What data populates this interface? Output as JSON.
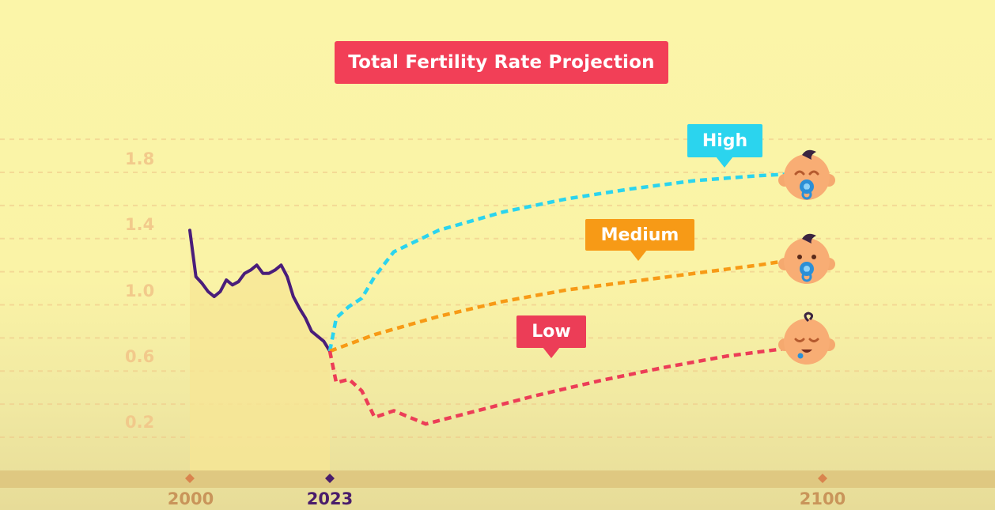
{
  "title": "Total Fertility Rate Projection",
  "chart_data": {
    "type": "line",
    "title": "Total Fertility Rate Projection",
    "xlabel": "",
    "ylabel": "",
    "x_ticks": [
      "2000",
      "2023",
      "2100"
    ],
    "y_ticks": [
      "0.2",
      "0.6",
      "1.0",
      "1.4",
      "1.8"
    ],
    "ylim": [
      0.0,
      2.2
    ],
    "grid": true,
    "series": [
      {
        "name": "",
        "style": "solid",
        "color": "#4a1d7a",
        "x": [
          2000,
          2001,
          2002,
          2003,
          2004,
          2005,
          2006,
          2007,
          2008,
          2009,
          2010,
          2011,
          2012,
          2013,
          2014,
          2015,
          2016,
          2017,
          2018,
          2019,
          2020,
          2021,
          2022,
          2023
        ],
        "y": [
          1.45,
          1.17,
          1.13,
          1.08,
          1.05,
          1.08,
          1.15,
          1.12,
          1.14,
          1.19,
          1.21,
          1.24,
          1.19,
          1.19,
          1.21,
          1.24,
          1.17,
          1.05,
          0.98,
          0.92,
          0.84,
          0.81,
          0.78,
          0.72
        ]
      },
      {
        "name": "High",
        "style": "dashed",
        "color": "#2bd4ee",
        "x": [
          2023,
          2024,
          2026,
          2028,
          2030,
          2033,
          2040,
          2050,
          2060,
          2070,
          2080,
          2090,
          2095
        ],
        "y": [
          0.72,
          0.92,
          0.99,
          1.04,
          1.17,
          1.32,
          1.45,
          1.56,
          1.64,
          1.7,
          1.75,
          1.78,
          1.79
        ]
      },
      {
        "name": "Medium",
        "style": "dashed",
        "color": "#f79a16",
        "x": [
          2023,
          2030,
          2040,
          2050,
          2060,
          2070,
          2080,
          2090,
          2095
        ],
        "y": [
          0.72,
          0.82,
          0.93,
          1.02,
          1.09,
          1.14,
          1.19,
          1.24,
          1.27
        ]
      },
      {
        "name": "Low",
        "style": "dashed",
        "color": "#ec3d57",
        "x": [
          2023,
          2024,
          2026,
          2028,
          2030,
          2033,
          2038,
          2045,
          2055,
          2065,
          2075,
          2085,
          2095
        ],
        "y": [
          0.72,
          0.53,
          0.55,
          0.48,
          0.32,
          0.36,
          0.28,
          0.35,
          0.45,
          0.54,
          0.62,
          0.69,
          0.74
        ]
      }
    ],
    "annotations": [
      "High",
      "Medium",
      "Low"
    ]
  }
}
